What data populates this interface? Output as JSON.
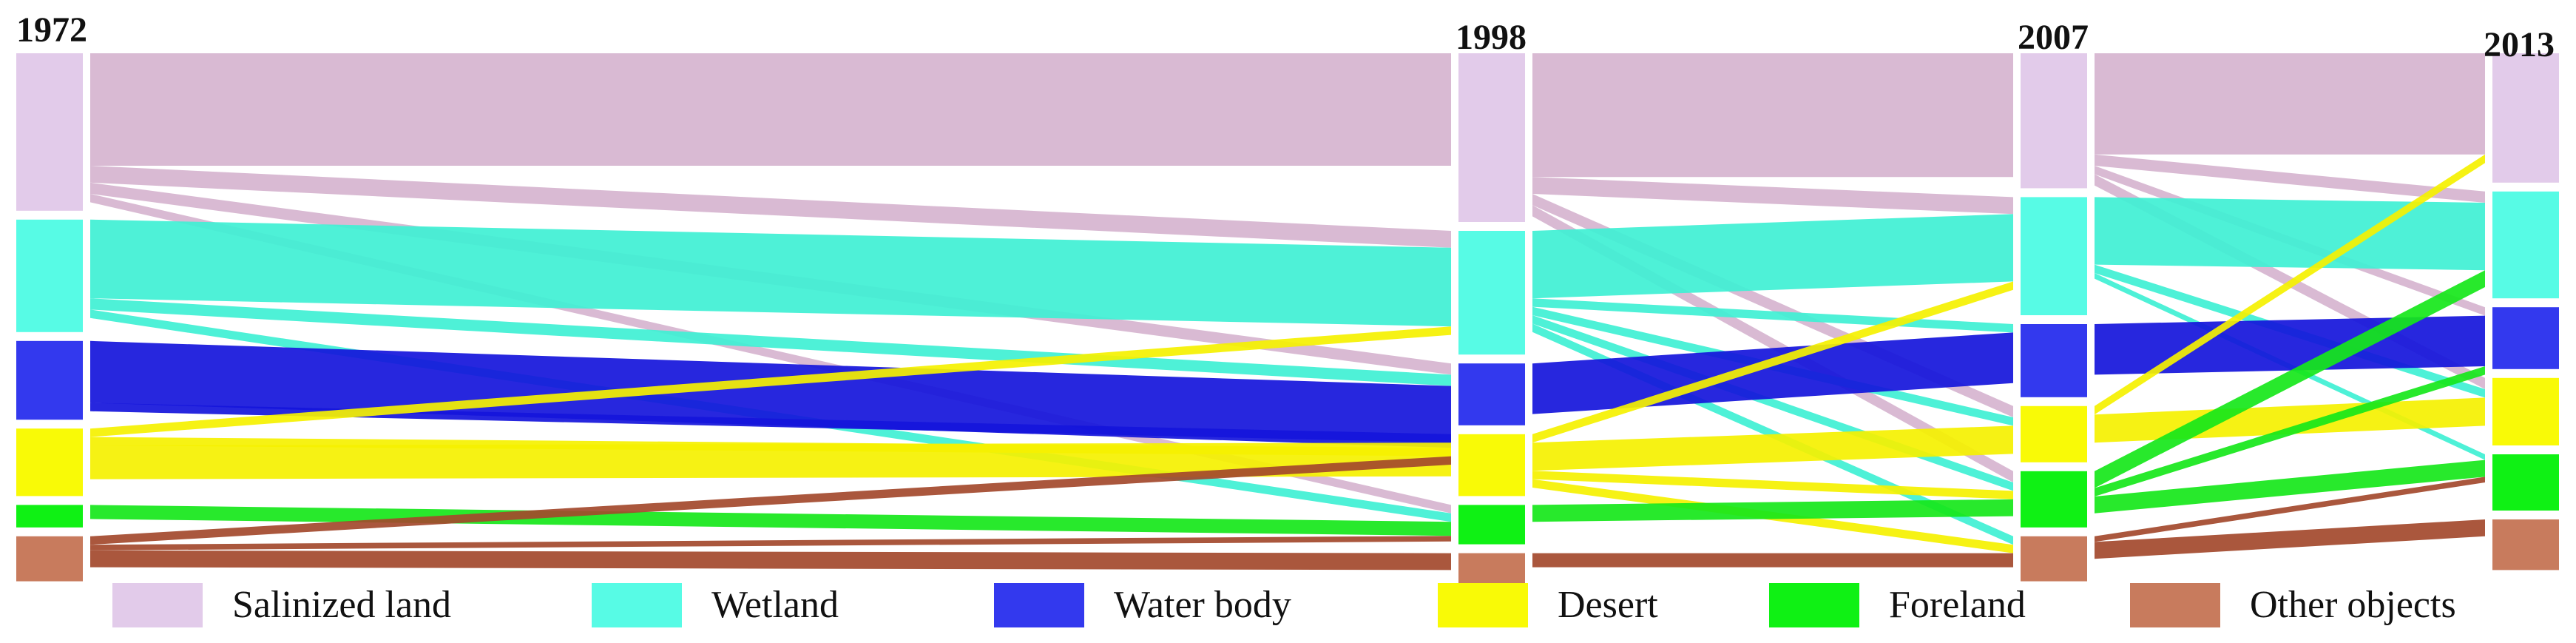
{
  "chart_data": {
    "type": "sankey",
    "title": "",
    "years": [
      "1972",
      "1998",
      "2007",
      "2013"
    ],
    "categories": [
      {
        "key": "salinized",
        "name": "Salinized land",
        "color": "#e2cbea",
        "flow_color": "#d6b4cf"
      },
      {
        "key": "wetland",
        "name": "Wetland",
        "color": "#57fbe5",
        "flow_color": "#3ff0d4"
      },
      {
        "key": "water",
        "name": "Water body",
        "color": "#3339ee",
        "flow_color": "#1515db"
      },
      {
        "key": "desert",
        "name": "Desert",
        "color": "#f9fa06",
        "flow_color": "#f5f100"
      },
      {
        "key": "foreland",
        "name": "Foreland",
        "color": "#0ff114",
        "flow_color": "#16e71a"
      },
      {
        "key": "other",
        "name": "Other objects",
        "color": "#c87b5d",
        "flow_color": "#a3492c"
      }
    ],
    "node_values": [
      [
        28,
        20,
        14,
        12,
        4,
        8
      ],
      [
        30,
        22,
        11,
        11,
        7,
        6
      ],
      [
        24,
        21,
        13,
        10,
        10,
        8
      ],
      [
        23,
        19,
        11,
        12,
        10,
        9
      ]
    ],
    "flows": [
      [
        {
          "from": "salinized",
          "to": "salinized",
          "value": 20
        },
        {
          "from": "salinized",
          "to": "wetland",
          "value": 3
        },
        {
          "from": "salinized",
          "to": "water",
          "value": 2
        },
        {
          "from": "salinized",
          "to": "foreland",
          "value": 1.5
        },
        {
          "from": "wetland",
          "to": "wetland",
          "value": 14
        },
        {
          "from": "wetland",
          "to": "water",
          "value": 2
        },
        {
          "from": "wetland",
          "to": "foreland",
          "value": 1.5
        },
        {
          "from": "water",
          "to": "water",
          "value": 11
        },
        {
          "from": "water",
          "to": "desert",
          "value": 1.5
        },
        {
          "from": "desert",
          "to": "wetland",
          "value": 1.5
        },
        {
          "from": "desert",
          "to": "water",
          "value": 1.5
        },
        {
          "from": "desert",
          "to": "desert",
          "value": 6
        },
        {
          "from": "foreland",
          "to": "foreland",
          "value": 2.5
        },
        {
          "from": "other",
          "to": "water",
          "value": 1.5
        },
        {
          "from": "other",
          "to": "foreland",
          "value": 1
        },
        {
          "from": "other",
          "to": "other",
          "value": 3
        }
      ],
      [
        {
          "from": "salinized",
          "to": "salinized",
          "value": 22
        },
        {
          "from": "salinized",
          "to": "wetland",
          "value": 3
        },
        {
          "from": "salinized",
          "to": "desert",
          "value": 2
        },
        {
          "from": "salinized",
          "to": "foreland",
          "value": 2
        },
        {
          "from": "wetland",
          "to": "wetland",
          "value": 12
        },
        {
          "from": "wetland",
          "to": "water",
          "value": 1.5
        },
        {
          "from": "wetland",
          "to": "desert",
          "value": 1.5
        },
        {
          "from": "wetland",
          "to": "foreland",
          "value": 1.5
        },
        {
          "from": "wetland",
          "to": "other",
          "value": 1.5
        },
        {
          "from": "water",
          "to": "water",
          "value": 9
        },
        {
          "from": "desert",
          "to": "wetland",
          "value": 1.5
        },
        {
          "from": "desert",
          "to": "desert",
          "value": 5
        },
        {
          "from": "desert",
          "to": "foreland",
          "value": 1.5
        },
        {
          "from": "desert",
          "to": "other",
          "value": 1.5
        },
        {
          "from": "foreland",
          "to": "foreland",
          "value": 3
        },
        {
          "from": "other",
          "to": "other",
          "value": 2.5
        }
      ],
      [
        {
          "from": "salinized",
          "to": "salinized",
          "value": 18
        },
        {
          "from": "salinized",
          "to": "wetland",
          "value": 2
        },
        {
          "from": "salinized",
          "to": "water",
          "value": 1.5
        },
        {
          "from": "salinized",
          "to": "desert",
          "value": 2
        },
        {
          "from": "wetland",
          "to": "wetland",
          "value": 12
        },
        {
          "from": "wetland",
          "to": "desert",
          "value": 1.5
        },
        {
          "from": "wetland",
          "to": "foreland",
          "value": 1
        },
        {
          "from": "water",
          "to": "water",
          "value": 9
        },
        {
          "from": "desert",
          "to": "salinized",
          "value": 1.5
        },
        {
          "from": "desert",
          "to": "desert",
          "value": 5
        },
        {
          "from": "foreland",
          "to": "water",
          "value": 1.5
        },
        {
          "from": "foreland",
          "to": "wetland",
          "value": 3
        },
        {
          "from": "foreland",
          "to": "foreland",
          "value": 3
        },
        {
          "from": "other",
          "to": "foreland",
          "value": 1
        },
        {
          "from": "other",
          "to": "other",
          "value": 3
        }
      ]
    ]
  },
  "legend": [
    {
      "label": "Salinized land",
      "color": "#e2cbea"
    },
    {
      "label": "Wetland",
      "color": "#57fbe5"
    },
    {
      "label": "Water body",
      "color": "#3339ee"
    },
    {
      "label": "Desert",
      "color": "#f9fa06"
    },
    {
      "label": "Foreland",
      "color": "#0ff114"
    },
    {
      "label": "Other objects",
      "color": "#c87b5d"
    }
  ]
}
